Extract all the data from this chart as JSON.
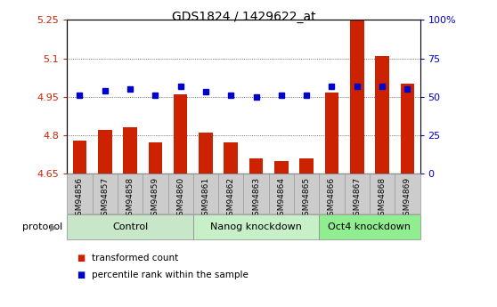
{
  "title": "GDS1824 / 1429622_at",
  "samples": [
    "GSM94856",
    "GSM94857",
    "GSM94858",
    "GSM94859",
    "GSM94860",
    "GSM94861",
    "GSM94862",
    "GSM94863",
    "GSM94864",
    "GSM94865",
    "GSM94866",
    "GSM94867",
    "GSM94868",
    "GSM94869"
  ],
  "transformed_count": [
    4.78,
    4.82,
    4.83,
    4.77,
    4.96,
    4.81,
    4.77,
    4.71,
    4.7,
    4.71,
    4.965,
    5.25,
    5.11,
    5.0
  ],
  "percentile_rank": [
    51,
    54,
    55,
    51,
    57,
    53,
    51,
    50,
    51,
    51,
    57,
    57,
    57,
    55
  ],
  "groups": [
    {
      "label": "Control",
      "start": 0,
      "end": 5
    },
    {
      "label": "Nanog knockdown",
      "start": 5,
      "end": 10
    },
    {
      "label": "Oct4 knockdown",
      "start": 10,
      "end": 14
    }
  ],
  "group_colors": [
    "#c8e6c8",
    "#c8f0c8",
    "#90ee90"
  ],
  "ylim_left": [
    4.65,
    5.25
  ],
  "ylim_right": [
    0,
    100
  ],
  "yticks_left": [
    4.65,
    4.8,
    4.95,
    5.1,
    5.25
  ],
  "yticks_right": [
    0,
    25,
    50,
    75,
    100
  ],
  "ytick_labels_left": [
    "4.65",
    "4.8",
    "4.95",
    "5.1",
    "5.25"
  ],
  "ytick_labels_right": [
    "0",
    "25",
    "50",
    "75",
    "100%"
  ],
  "bar_color": "#cc2200",
  "dot_color": "#0000cc",
  "bar_bottom": 4.65,
  "protocol_label": "protocol",
  "legend_items": [
    {
      "label": "transformed count",
      "color": "#cc2200"
    },
    {
      "label": "percentile rank within the sample",
      "color": "#0000cc"
    }
  ],
  "grid_yticks": [
    4.8,
    4.95,
    5.1
  ],
  "label_bg_color": "#cccccc",
  "label_edge_color": "#999999"
}
